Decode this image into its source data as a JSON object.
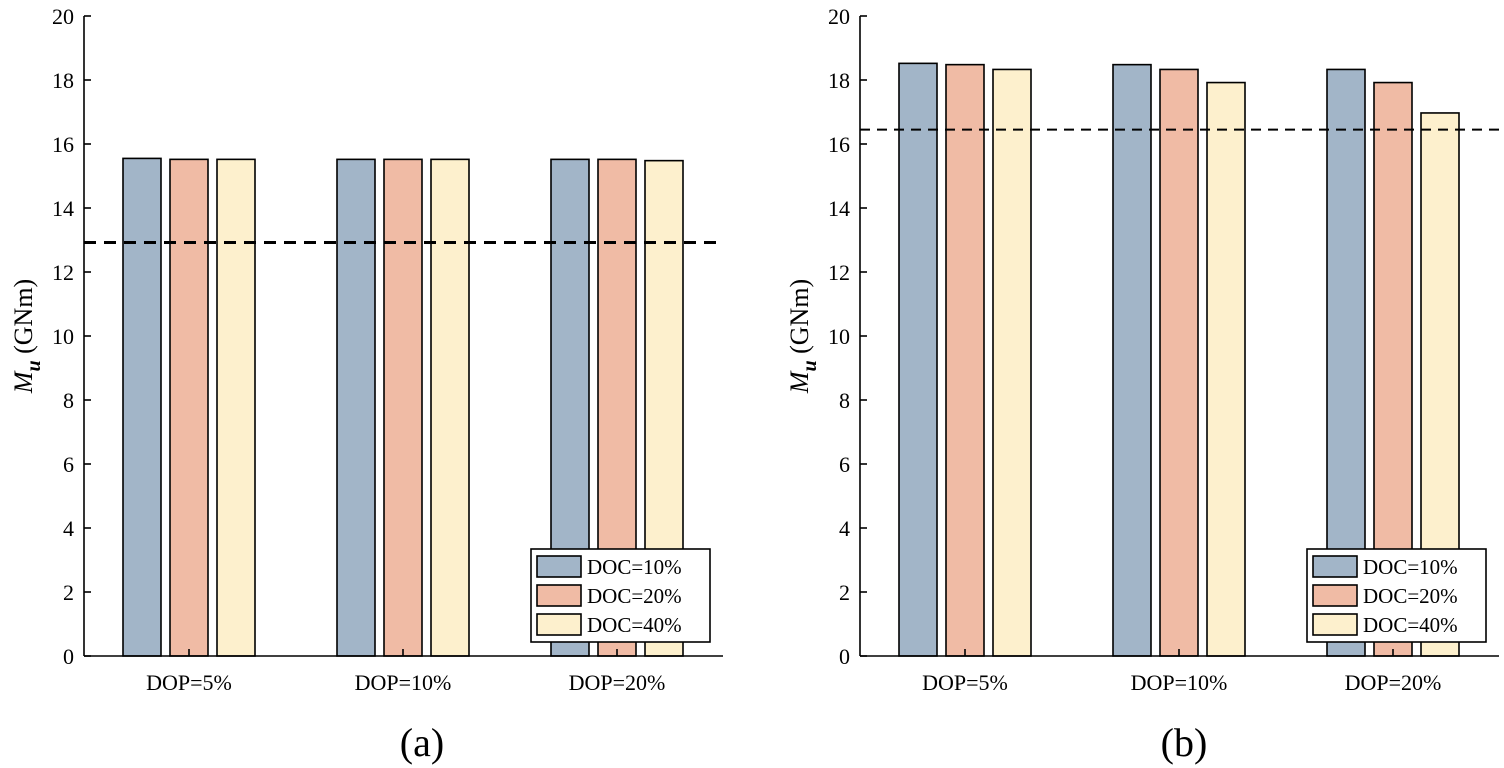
{
  "colors": {
    "series": [
      "#a2b5c8",
      "#f0bba5",
      "#fdf0cd"
    ],
    "axis": "#000000",
    "reference_line": "#000000"
  },
  "chart_data": [
    {
      "type": "bar",
      "panel_label": "(a)",
      "categories": [
        "DOP=5%",
        "DOP=10%",
        "DOP=20%"
      ],
      "series": [
        {
          "name": "DOC=10%",
          "values": [
            15.55,
            15.52,
            15.52
          ]
        },
        {
          "name": "DOC=20%",
          "values": [
            15.52,
            15.52,
            15.52
          ]
        },
        {
          "name": "DOC=40%",
          "values": [
            15.52,
            15.52,
            15.48
          ]
        }
      ],
      "reference_line": 12.92,
      "ylabel_main": "M",
      "ylabel_sub": "u",
      "ylabel_unit": " (GNm)",
      "ylim": [
        0,
        20
      ],
      "yticks": [
        "0",
        "2",
        "4",
        "6",
        "8",
        "10",
        "12",
        "14",
        "16",
        "18",
        "20"
      ],
      "legend_position": "bottom-right",
      "grid": false
    },
    {
      "type": "bar",
      "panel_label": "(b)",
      "categories": [
        "DOP=5%",
        "DOP=10%",
        "DOP=20%"
      ],
      "series": [
        {
          "name": "DOC=10%",
          "values": [
            18.52,
            18.48,
            18.33
          ]
        },
        {
          "name": "DOC=20%",
          "values": [
            18.48,
            18.33,
            17.92
          ]
        },
        {
          "name": "DOC=40%",
          "values": [
            18.33,
            17.92,
            16.97
          ]
        }
      ],
      "reference_line": 16.45,
      "ylabel_main": "M",
      "ylabel_sub": "u",
      "ylabel_unit": " (GNm)",
      "ylim": [
        0,
        20
      ],
      "yticks": [
        "0",
        "2",
        "4",
        "6",
        "8",
        "10",
        "12",
        "14",
        "16",
        "18",
        "20"
      ],
      "legend_position": "bottom-right",
      "grid": false
    }
  ]
}
